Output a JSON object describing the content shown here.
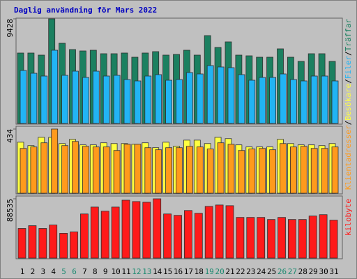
{
  "chart_data": [
    {
      "type": "bar",
      "title": "Daglig användning för Mars 2022",
      "legend_separator": "/",
      "ylim": [
        0,
        9428
      ],
      "yticks": [
        9428
      ],
      "series": [
        {
          "name": "Träffar",
          "color": "#1b8060",
          "values": [
            6348,
            6348,
            6160,
            9428,
            7228,
            6662,
            6536,
            6600,
            6285,
            6285,
            6348,
            5971,
            6348,
            6474,
            6160,
            6222,
            6600,
            6160,
            7919,
            6851,
            7354,
            6160,
            6097,
            5971,
            5971,
            6725,
            5971,
            5594,
            6285,
            6285,
            5594
          ]
        },
        {
          "name": "Filer",
          "color": "#22b4f4",
          "values": [
            4777,
            4525,
            4274,
            6600,
            4337,
            4714,
            4148,
            4714,
            4274,
            4337,
            3960,
            3834,
            4274,
            4400,
            3897,
            3960,
            4588,
            4462,
            5217,
            5091,
            5028,
            4400,
            3897,
            4148,
            4148,
            4462,
            3960,
            3834,
            4274,
            4274,
            3834
          ]
        }
      ]
    },
    {
      "type": "bar",
      "ylim": [
        0,
        434
      ],
      "yticks": [
        434
      ],
      "series": [
        {
          "name": "Besökare",
          "color": "#ffff40",
          "values": [
            345,
            322,
            378,
            378,
            336,
            364,
            327,
            327,
            341,
            336,
            336,
            331,
            341,
            308,
            345,
            317,
            359,
            359,
            336,
            378,
            369,
            327,
            313,
            313,
            313,
            364,
            336,
            327,
            327,
            322,
            336
          ]
        },
        {
          "name": "Klientadresser",
          "color": "#ff9a1c",
          "values": [
            303,
            313,
            341,
            434,
            322,
            350,
            317,
            313,
            313,
            289,
            331,
            331,
            308,
            294,
            308,
            308,
            317,
            313,
            299,
            341,
            331,
            289,
            299,
            303,
            294,
            336,
            313,
            317,
            303,
            303,
            313
          ]
        }
      ]
    },
    {
      "type": "bar",
      "ylim": [
        0,
        88535
      ],
      "yticks": [
        88535
      ],
      "categories": [
        "1",
        "2",
        "3",
        "4",
        "5",
        "6",
        "7",
        "8",
        "9",
        "10",
        "11",
        "12",
        "13",
        "14",
        "15",
        "16",
        "17",
        "18",
        "19",
        "20",
        "21",
        "22",
        "23",
        "24",
        "25",
        "26",
        "27",
        "28",
        "29",
        "30",
        "31"
      ],
      "category_colors": [
        "#000000",
        "#000000",
        "#000000",
        "#000000",
        "#1b8a70",
        "#1b8a70",
        "#000000",
        "#000000",
        "#000000",
        "#000000",
        "#000000",
        "#1b8a70",
        "#1b8a70",
        "#000000",
        "#000000",
        "#000000",
        "#000000",
        "#000000",
        "#1b8a70",
        "#1b8a70",
        "#000000",
        "#000000",
        "#000000",
        "#000000",
        "#000000",
        "#1b8a70",
        "#1b8a70",
        "#000000",
        "#000000",
        "#000000",
        "#000000"
      ],
      "series": [
        {
          "name": "kilobyte",
          "color": "#ff1a1a",
          "values": [
            44268,
            48385,
            44268,
            49415,
            37061,
            39120,
            65887,
            76182,
            70005,
            76182,
            86477,
            84418,
            83389,
            88535,
            65887,
            63828,
            71035,
            66917,
            77211,
            79271,
            78241,
            60740,
            60740,
            60740,
            57651,
            60740,
            57651,
            57651,
            62799,
            64858,
            56622
          ]
        }
      ]
    }
  ]
}
